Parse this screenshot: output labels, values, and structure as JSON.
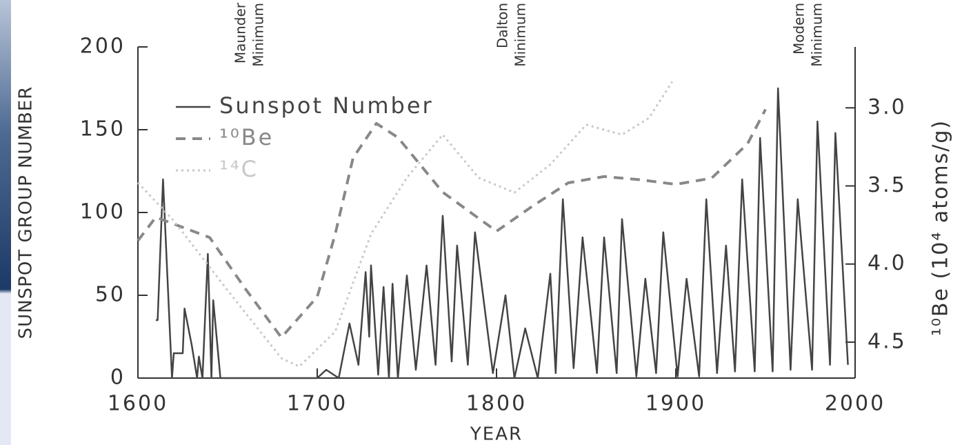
{
  "chart_data": {
    "type": "line",
    "xlabel": "YEAR",
    "ylabel": "SUNSPOT GROUP NUMBER",
    "y2label": "¹⁰Be (10⁴ atoms/g)",
    "xlim": [
      1600,
      2000
    ],
    "xticks": [
      1600,
      1700,
      1800,
      1900,
      2000
    ],
    "ylim": [
      0,
      200
    ],
    "yticks": [
      0,
      50,
      100,
      150,
      200
    ],
    "y2lim": [
      4.73,
      2.61
    ],
    "y2ticks": [
      {
        "value": 3.0,
        "label": "3.0"
      },
      3.5,
      {
        "value": 4.0,
        "label": "4.0"
      },
      4.5
    ],
    "legend": "upper left",
    "annotations": [
      [
        "Maunder",
        "Minimum"
      ],
      [
        "Dalton",
        "Minimum"
      ],
      [
        "Modern",
        "Minimum"
      ]
    ],
    "series": [
      {
        "name": "Sunspot Number",
        "color": "#444444",
        "style": "solid",
        "x": [
          1610,
          1611,
          1614,
          1619,
          1620,
          1625,
          1626,
          1630,
          1633,
          1634,
          1636,
          1639,
          1641,
          1642,
          1646,
          1700,
          1705,
          1712,
          1718,
          1723,
          1727,
          1729,
          1730,
          1734,
          1737,
          1740,
          1742,
          1745,
          1750,
          1755,
          1761,
          1766,
          1770,
          1775,
          1778,
          1784,
          1788,
          1798,
          1805,
          1810,
          1816,
          1823,
          1830,
          1833,
          1837,
          1843,
          1848,
          1856,
          1860,
          1867,
          1870,
          1878,
          1883,
          1889,
          1893,
          1901,
          1906,
          1913,
          1917,
          1923,
          1928,
          1933,
          1937,
          1944,
          1947,
          1954,
          1957,
          1964,
          1968,
          1976,
          1979,
          1986,
          1989,
          1996
        ],
        "values": [
          35,
          35,
          120,
          0,
          15,
          15,
          42,
          20,
          0,
          13,
          0,
          75,
          0,
          47,
          0,
          0,
          5,
          0,
          33,
          8,
          64,
          25,
          68,
          2,
          55,
          0,
          57,
          0,
          62,
          5,
          68,
          8,
          98,
          10,
          80,
          8,
          88,
          3,
          50,
          0,
          30,
          0,
          63,
          3,
          108,
          6,
          85,
          3,
          85,
          3,
          96,
          1,
          60,
          3,
          88,
          1,
          60,
          1,
          108,
          3,
          80,
          4,
          120,
          4,
          145,
          4,
          175,
          5,
          108,
          5,
          155,
          8,
          148,
          8
        ]
      },
      {
        "name": "¹⁰Be",
        "color": "#888888",
        "style": "dashed",
        "axis": "y2",
        "x": [
          1600,
          1610,
          1640,
          1660,
          1680,
          1700,
          1710,
          1720,
          1733,
          1745,
          1770,
          1800,
          1820,
          1840,
          1860,
          1880,
          1900,
          1920,
          1940,
          1950
        ],
        "values": [
          3.85,
          3.7,
          3.83,
          4.16,
          4.47,
          4.21,
          3.81,
          3.32,
          3.1,
          3.19,
          3.54,
          3.79,
          3.63,
          3.48,
          3.44,
          3.46,
          3.49,
          3.45,
          3.23,
          3.01
        ]
      },
      {
        "name": "¹⁴C",
        "color": "#c8c8c8",
        "style": "dotted",
        "x": [
          1600,
          1620,
          1650,
          1680,
          1690,
          1710,
          1730,
          1750,
          1770,
          1790,
          1810,
          1830,
          1850,
          1870,
          1885,
          1898
        ],
        "values": [
          118,
          95,
          53,
          12,
          7,
          28,
          87,
          121,
          147,
          121,
          112,
          129,
          153,
          147,
          157,
          179
        ]
      }
    ]
  }
}
